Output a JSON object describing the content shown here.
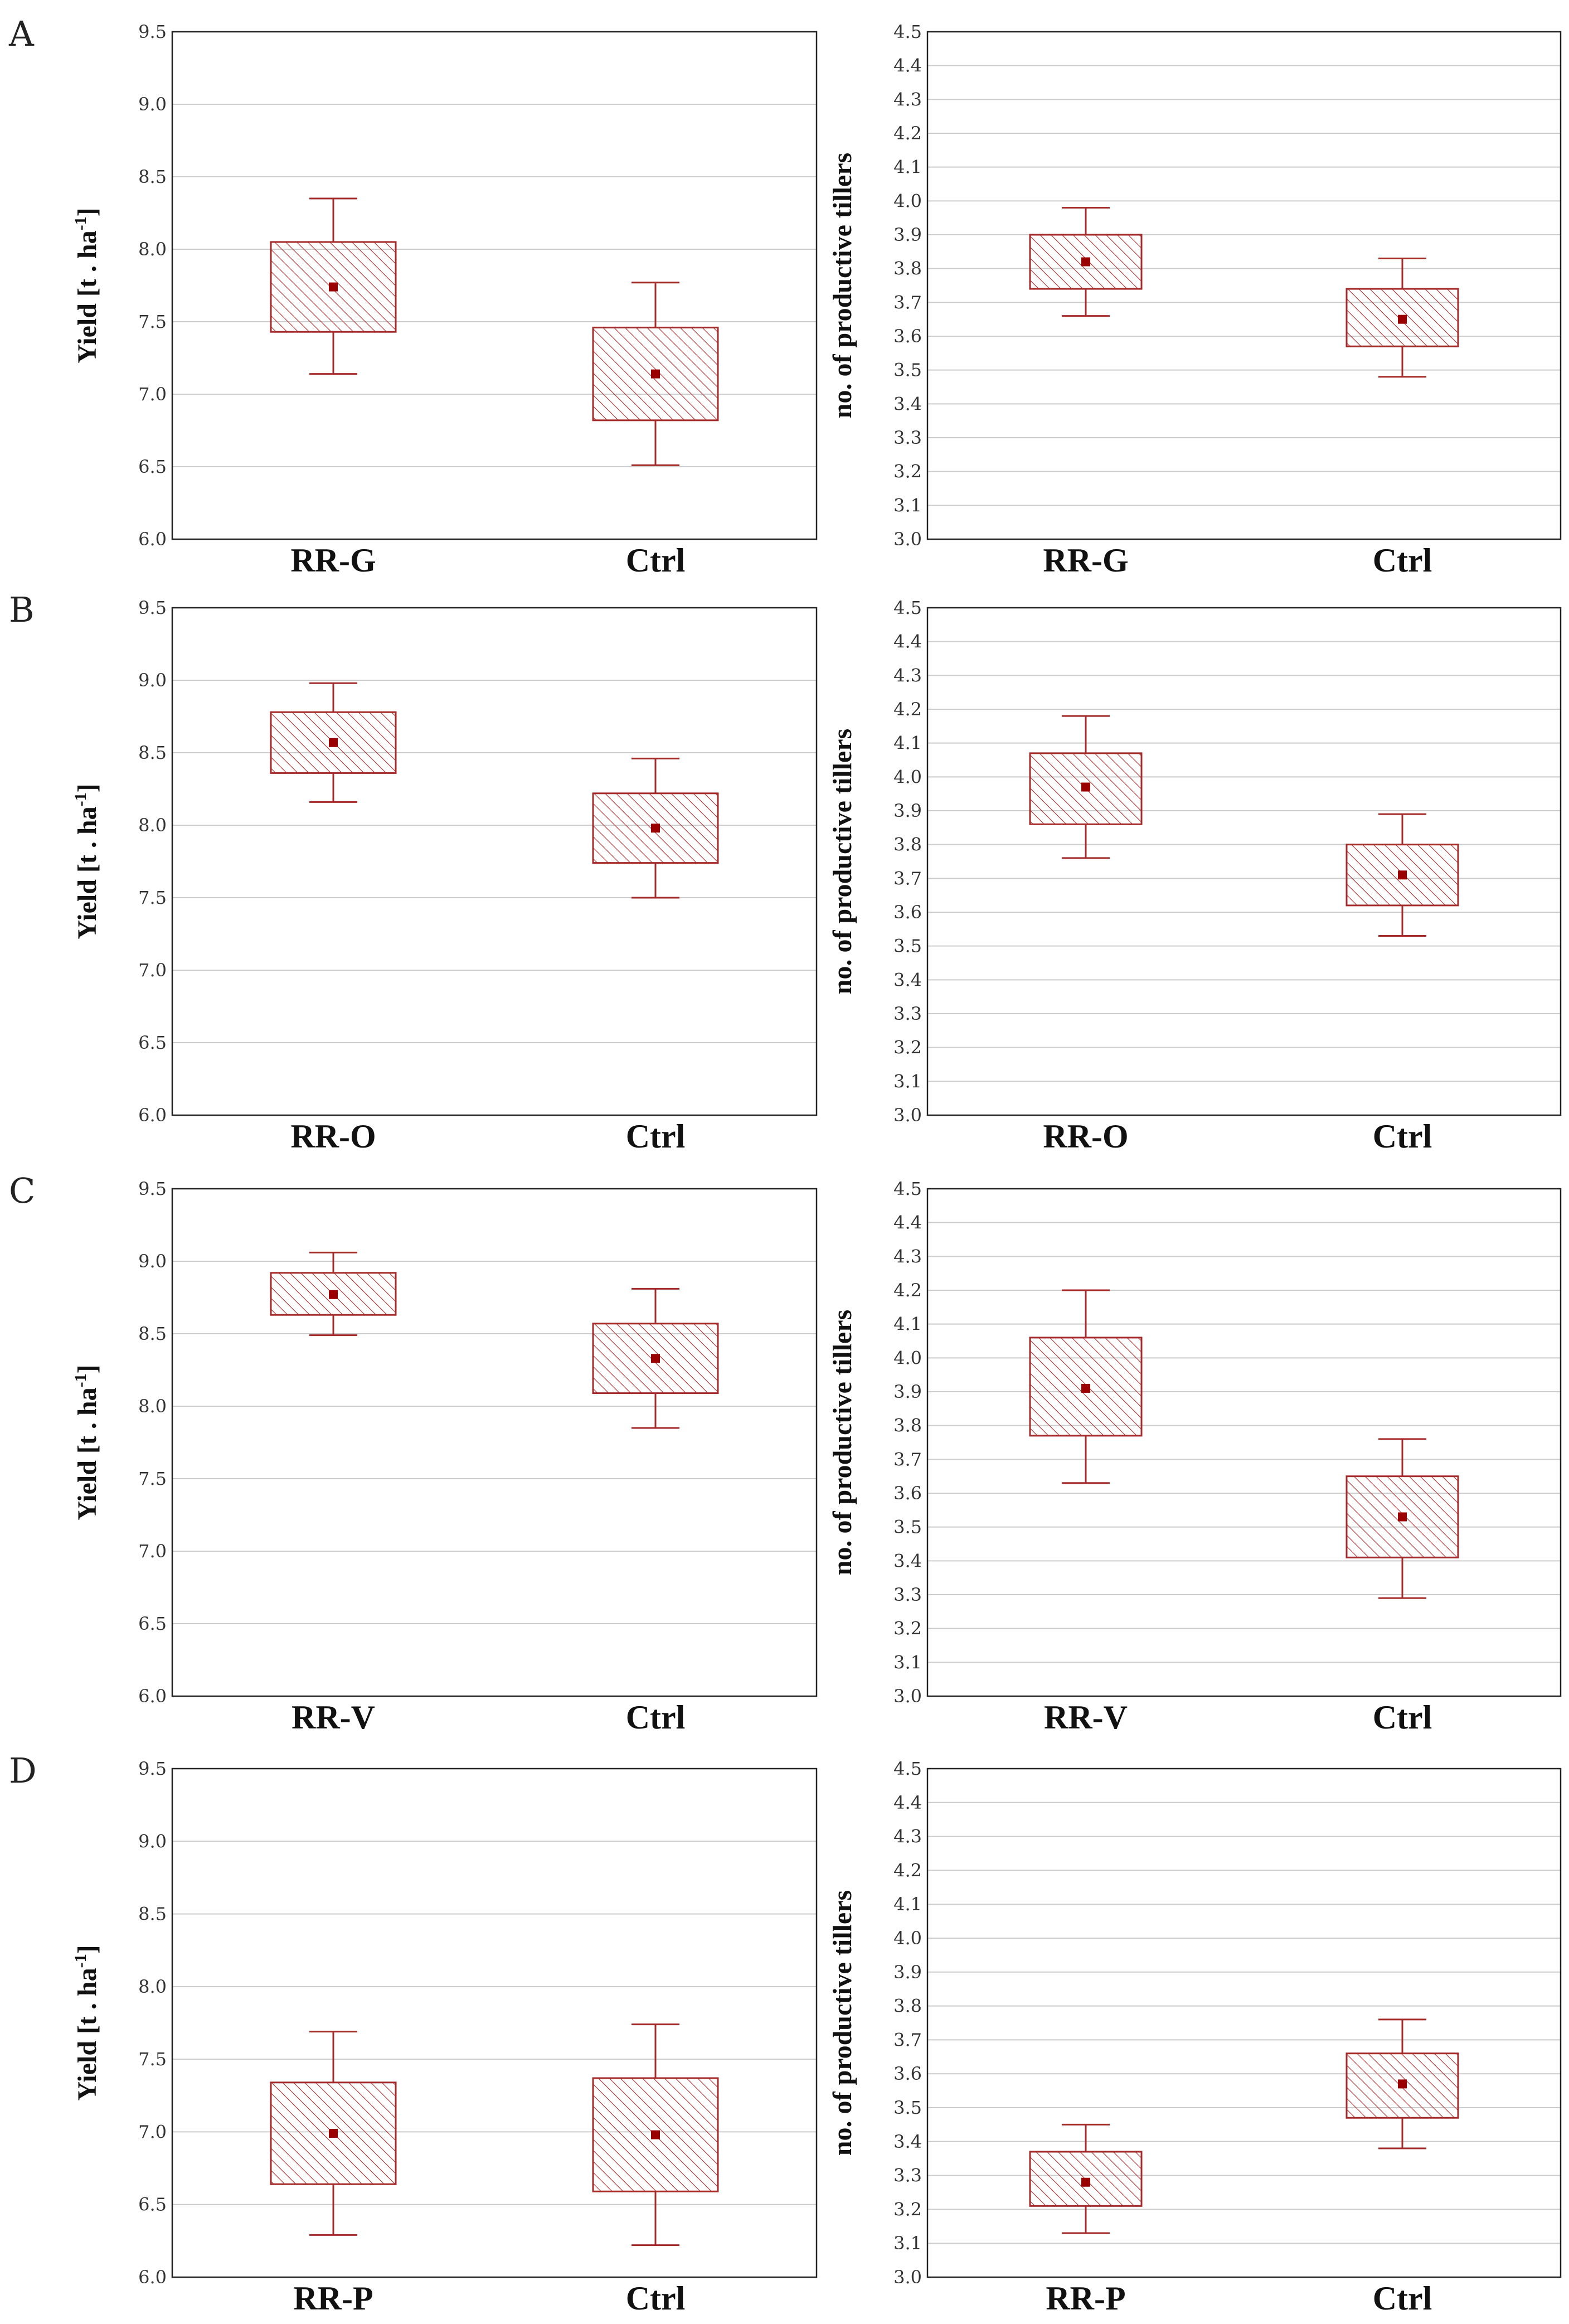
{
  "colors": {
    "box_stroke": "#a52a2a",
    "mean_marker": "#9b0000",
    "grid": "#cccccc",
    "frame": "#222222"
  },
  "chart_data": [
    {
      "panel": "A",
      "type": "box",
      "ylabel": "Yield [t . ha",
      "ylabel_sup": "-1",
      "ylabel_tail": "]",
      "ylim": [
        6.0,
        9.5
      ],
      "yticks": [
        "6.0",
        "6.5",
        "7.0",
        "7.5",
        "8.0",
        "8.5",
        "9.0",
        "9.5"
      ],
      "categories": [
        "RR-G",
        "Ctrl"
      ],
      "boxes": [
        {
          "whisker_low": 7.14,
          "q1": 7.43,
          "mean": 7.74,
          "q3": 8.05,
          "whisker_high": 8.35
        },
        {
          "whisker_low": 6.51,
          "q1": 6.82,
          "mean": 7.14,
          "q3": 7.46,
          "whisker_high": 7.77
        }
      ]
    },
    {
      "panel": "",
      "type": "box",
      "ylabel": "no. of productive tillers",
      "ylim": [
        3.0,
        4.5
      ],
      "yticks": [
        "3.0",
        "3.1",
        "3.2",
        "3.3",
        "3.4",
        "3.5",
        "3.6",
        "3.7",
        "3.8",
        "3.9",
        "4.0",
        "4.1",
        "4.2",
        "4.3",
        "4.4",
        "4.5"
      ],
      "categories": [
        "RR-G",
        "Ctrl"
      ],
      "boxes": [
        {
          "whisker_low": 3.66,
          "q1": 3.74,
          "mean": 3.82,
          "q3": 3.9,
          "whisker_high": 3.98
        },
        {
          "whisker_low": 3.48,
          "q1": 3.57,
          "mean": 3.65,
          "q3": 3.74,
          "whisker_high": 3.83
        }
      ]
    },
    {
      "panel": "B",
      "type": "box",
      "ylabel": "Yield [t . ha",
      "ylabel_sup": "-1",
      "ylabel_tail": "]",
      "ylim": [
        6.0,
        9.5
      ],
      "yticks": [
        "6.0",
        "6.5",
        "7.0",
        "7.5",
        "8.0",
        "8.5",
        "9.0",
        "9.5"
      ],
      "categories": [
        "RR-O",
        "Ctrl"
      ],
      "boxes": [
        {
          "whisker_low": 8.16,
          "q1": 8.36,
          "mean": 8.57,
          "q3": 8.78,
          "whisker_high": 8.98
        },
        {
          "whisker_low": 7.5,
          "q1": 7.74,
          "mean": 7.98,
          "q3": 8.22,
          "whisker_high": 8.46
        }
      ]
    },
    {
      "panel": "",
      "type": "box",
      "ylabel": "no. of productive tillers",
      "ylim": [
        3.0,
        4.5
      ],
      "yticks": [
        "3.0",
        "3.1",
        "3.2",
        "3.3",
        "3.4",
        "3.5",
        "3.6",
        "3.7",
        "3.8",
        "3.9",
        "4.0",
        "4.1",
        "4.2",
        "4.3",
        "4.4",
        "4.5"
      ],
      "categories": [
        "RR-O",
        "Ctrl"
      ],
      "boxes": [
        {
          "whisker_low": 3.76,
          "q1": 3.86,
          "mean": 3.97,
          "q3": 4.07,
          "whisker_high": 4.18
        },
        {
          "whisker_low": 3.53,
          "q1": 3.62,
          "mean": 3.71,
          "q3": 3.8,
          "whisker_high": 3.89
        }
      ]
    },
    {
      "panel": "C",
      "type": "box",
      "ylabel": "Yield [t . ha",
      "ylabel_sup": "-1",
      "ylabel_tail": "]",
      "ylim": [
        6.0,
        9.5
      ],
      "yticks": [
        "6.0",
        "6.5",
        "7.0",
        "7.5",
        "8.0",
        "8.5",
        "9.0",
        "9.5"
      ],
      "categories": [
        "RR-V",
        "Ctrl"
      ],
      "boxes": [
        {
          "whisker_low": 8.49,
          "q1": 8.63,
          "mean": 8.77,
          "q3": 8.92,
          "whisker_high": 9.06
        },
        {
          "whisker_low": 7.85,
          "q1": 8.09,
          "mean": 8.33,
          "q3": 8.57,
          "whisker_high": 8.81
        }
      ]
    },
    {
      "panel": "",
      "type": "box",
      "ylabel": "no. of productive tillers",
      "ylim": [
        3.0,
        4.5
      ],
      "yticks": [
        "3.0",
        "3.1",
        "3.2",
        "3.3",
        "3.4",
        "3.5",
        "3.6",
        "3.7",
        "3.8",
        "3.9",
        "4.0",
        "4.1",
        "4.2",
        "4.3",
        "4.4",
        "4.5"
      ],
      "categories": [
        "RR-V",
        "Ctrl"
      ],
      "boxes": [
        {
          "whisker_low": 3.63,
          "q1": 3.77,
          "mean": 3.91,
          "q3": 4.06,
          "whisker_high": 4.2
        },
        {
          "whisker_low": 3.29,
          "q1": 3.41,
          "mean": 3.53,
          "q3": 3.65,
          "whisker_high": 3.76
        }
      ]
    },
    {
      "panel": "D",
      "type": "box",
      "ylabel": "Yield [t . ha",
      "ylabel_sup": "-1",
      "ylabel_tail": "]",
      "ylim": [
        6.0,
        9.5
      ],
      "yticks": [
        "6.0",
        "6.5",
        "7.0",
        "7.5",
        "8.0",
        "8.5",
        "9.0",
        "9.5"
      ],
      "categories": [
        "RR-P",
        "Ctrl"
      ],
      "boxes": [
        {
          "whisker_low": 6.29,
          "q1": 6.64,
          "mean": 6.99,
          "q3": 7.34,
          "whisker_high": 7.69
        },
        {
          "whisker_low": 6.22,
          "q1": 6.59,
          "mean": 6.98,
          "q3": 7.37,
          "whisker_high": 7.74
        }
      ]
    },
    {
      "panel": "",
      "type": "box",
      "ylabel": "no. of productive tillers",
      "ylim": [
        3.0,
        4.5
      ],
      "yticks": [
        "3.0",
        "3.1",
        "3.2",
        "3.3",
        "3.4",
        "3.5",
        "3.6",
        "3.7",
        "3.8",
        "3.9",
        "4.0",
        "4.1",
        "4.2",
        "4.3",
        "4.4",
        "4.5"
      ],
      "categories": [
        "RR-P",
        "Ctrl"
      ],
      "boxes": [
        {
          "whisker_low": 3.13,
          "q1": 3.21,
          "mean": 3.28,
          "q3": 3.37,
          "whisker_high": 3.45
        },
        {
          "whisker_low": 3.38,
          "q1": 3.47,
          "mean": 3.57,
          "q3": 3.66,
          "whisker_high": 3.76
        }
      ]
    }
  ]
}
